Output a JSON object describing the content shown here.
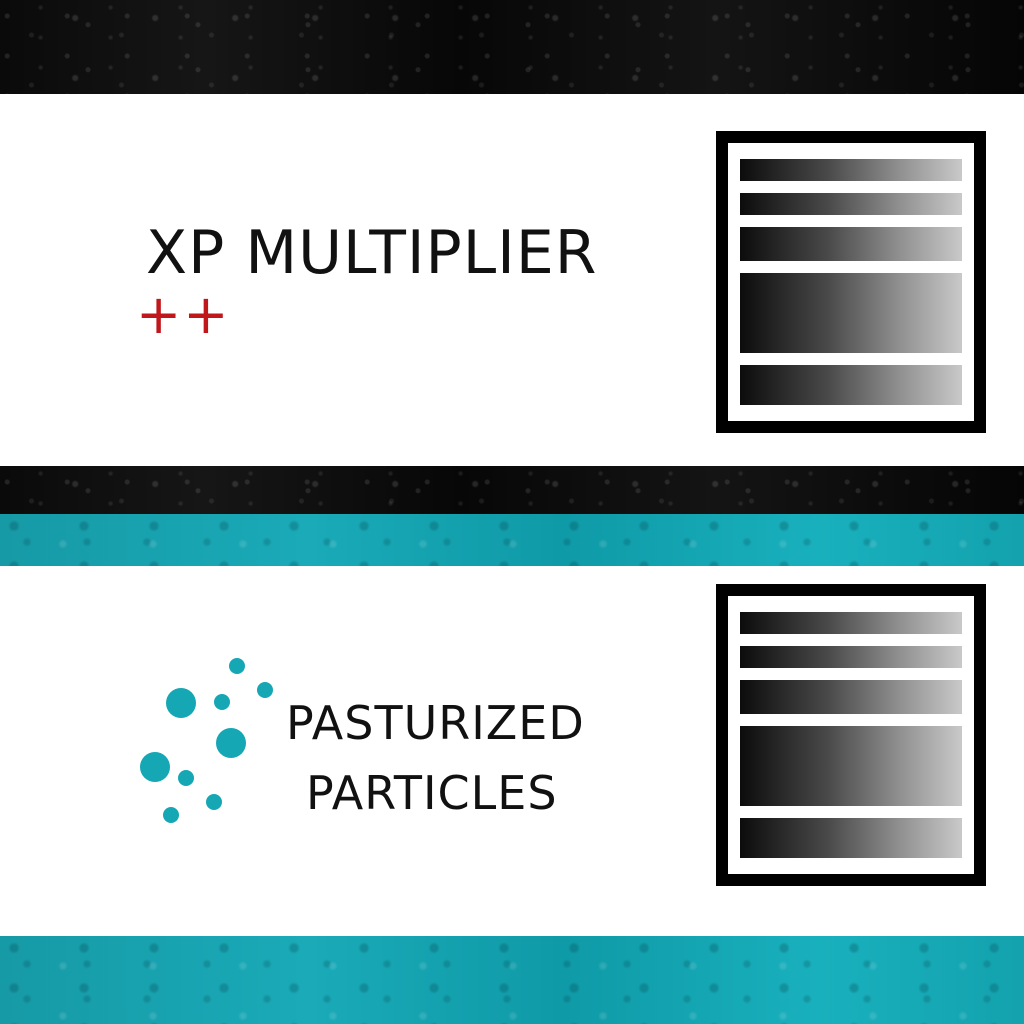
{
  "cards": [
    {
      "title": "XP MULTIPLIER",
      "badge": "++",
      "icon": "plus-plus-icon",
      "menu_icon": "settings-panel-icon"
    },
    {
      "title_line1": "PASTURIZED",
      "title_line2": "PARTICLES",
      "icon": "particles-icon",
      "menu_icon": "settings-panel-icon"
    }
  ],
  "colors": {
    "accent_teal": "#16a7b5",
    "badge_red": "#c0171b",
    "panel_bg": "#ffffff",
    "text": "#111111"
  }
}
